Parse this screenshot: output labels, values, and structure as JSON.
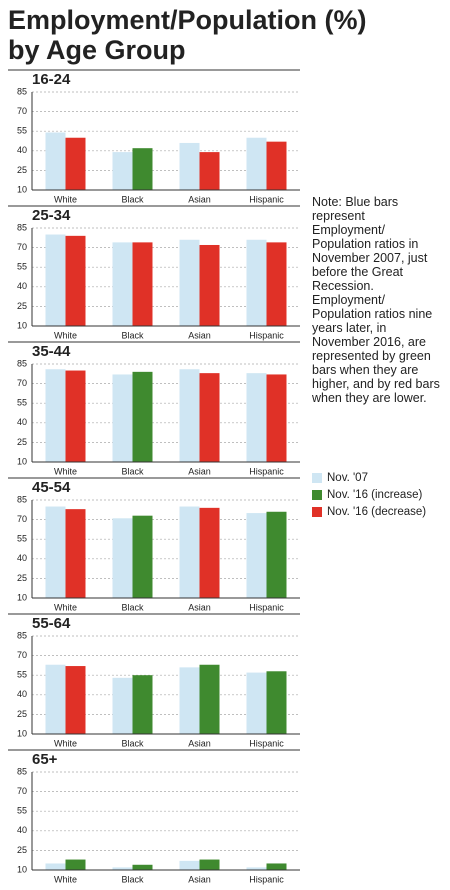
{
  "title": [
    "Employment/Population (%)",
    "by Age Group"
  ],
  "note": "Note: Blue bars represent Employment/ Population ratios in November 2007, just before the Great Recession. Employment/ Population ratios nine years later, in November 2016, are represented by green bars when they are higher, and by red bars when they are lower.",
  "legend": [
    {
      "label": "Nov. '07",
      "color": "#cfe6f3"
    },
    {
      "label": "Nov. '16 (increase)",
      "color": "#3f8a2f"
    },
    {
      "label": "Nov. '16 (decrease)",
      "color": "#e03127"
    }
  ],
  "chart_data": [
    {
      "type": "bar",
      "title": "16-24",
      "categories": [
        "White",
        "Black",
        "Asian",
        "Hispanic"
      ],
      "ylim": [
        10,
        85
      ],
      "yticks": [
        10,
        25,
        40,
        55,
        70,
        85
      ],
      "grid": true,
      "series": [
        {
          "color": "#cfe6f3",
          "values": [
            54,
            39,
            46,
            50
          ]
        },
        {
          "colors": [
            "#e03127",
            "#3f8a2f",
            "#e03127",
            "#e03127"
          ],
          "values": [
            50,
            42,
            39,
            47
          ]
        }
      ]
    },
    {
      "type": "bar",
      "title": "25-34",
      "categories": [
        "White",
        "Black",
        "Asian",
        "Hispanic"
      ],
      "ylim": [
        10,
        85
      ],
      "yticks": [
        10,
        25,
        40,
        55,
        70,
        85
      ],
      "grid": true,
      "series": [
        {
          "color": "#cfe6f3",
          "values": [
            80,
            74,
            76,
            76
          ]
        },
        {
          "colors": [
            "#e03127",
            "#e03127",
            "#e03127",
            "#e03127"
          ],
          "values": [
            79,
            74,
            72,
            74
          ]
        }
      ]
    },
    {
      "type": "bar",
      "title": "35-44",
      "categories": [
        "White",
        "Black",
        "Asian",
        "Hispanic"
      ],
      "ylim": [
        10,
        85
      ],
      "yticks": [
        10,
        25,
        40,
        55,
        70,
        85
      ],
      "grid": true,
      "series": [
        {
          "color": "#cfe6f3",
          "values": [
            81,
            77,
            81,
            78
          ]
        },
        {
          "colors": [
            "#e03127",
            "#3f8a2f",
            "#e03127",
            "#e03127"
          ],
          "values": [
            80,
            79,
            78,
            77
          ]
        }
      ]
    },
    {
      "type": "bar",
      "title": "45-54",
      "categories": [
        "White",
        "Black",
        "Asian",
        "Hispanic"
      ],
      "ylim": [
        10,
        85
      ],
      "yticks": [
        10,
        25,
        40,
        55,
        70,
        85
      ],
      "grid": true,
      "series": [
        {
          "color": "#cfe6f3",
          "values": [
            80,
            71,
            80,
            75
          ]
        },
        {
          "colors": [
            "#e03127",
            "#3f8a2f",
            "#e03127",
            "#3f8a2f"
          ],
          "values": [
            78,
            73,
            79,
            76
          ]
        }
      ]
    },
    {
      "type": "bar",
      "title": "55-64",
      "categories": [
        "White",
        "Black",
        "Asian",
        "Hispanic"
      ],
      "ylim": [
        10,
        85
      ],
      "yticks": [
        10,
        25,
        40,
        55,
        70,
        85
      ],
      "grid": true,
      "series": [
        {
          "color": "#cfe6f3",
          "values": [
            63,
            53,
            61,
            57
          ]
        },
        {
          "colors": [
            "#e03127",
            "#3f8a2f",
            "#3f8a2f",
            "#3f8a2f"
          ],
          "values": [
            62,
            55,
            63,
            58
          ]
        }
      ]
    },
    {
      "type": "bar",
      "title": "65+",
      "categories": [
        "White",
        "Black",
        "Asian",
        "Hispanic"
      ],
      "ylim": [
        10,
        85
      ],
      "yticks": [
        10,
        25,
        40,
        55,
        70,
        85
      ],
      "grid": true,
      "series": [
        {
          "color": "#cfe6f3",
          "values": [
            15,
            12,
            17,
            12
          ]
        },
        {
          "colors": [
            "#3f8a2f",
            "#3f8a2f",
            "#3f8a2f",
            "#3f8a2f"
          ],
          "values": [
            18,
            14,
            18,
            15
          ]
        }
      ]
    }
  ]
}
